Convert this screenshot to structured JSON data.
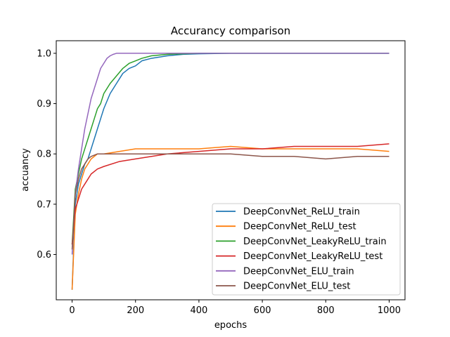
{
  "chart_data": {
    "type": "line",
    "title": "Accurancy comparison",
    "xlabel": "epochs",
    "ylabel": "accuancy",
    "xlim": [
      -50,
      1050
    ],
    "ylim": [
      0.51,
      1.025
    ],
    "xticks": [
      0,
      200,
      400,
      600,
      800,
      1000
    ],
    "yticks": [
      0.6,
      0.7,
      0.8,
      0.9,
      1.0
    ],
    "xtick_labels": [
      "0",
      "200",
      "400",
      "600",
      "800",
      "1000"
    ],
    "ytick_labels": [
      "0.6",
      "0.7",
      "0.8",
      "0.9",
      "1.0"
    ],
    "grid": false,
    "legend_position": "lower-right",
    "series": [
      {
        "name": "DeepConvNet_ReLU_train",
        "color": "#1f77b4",
        "x": [
          0,
          10,
          20,
          30,
          40,
          50,
          60,
          70,
          80,
          90,
          100,
          120,
          140,
          160,
          180,
          200,
          220,
          250,
          300,
          350,
          400,
          500,
          600,
          800,
          1000
        ],
        "y": [
          0.53,
          0.7,
          0.74,
          0.76,
          0.78,
          0.79,
          0.81,
          0.83,
          0.85,
          0.87,
          0.89,
          0.92,
          0.94,
          0.96,
          0.97,
          0.975,
          0.985,
          0.99,
          0.995,
          0.998,
          0.999,
          1.0,
          1.0,
          1.0,
          1.0
        ]
      },
      {
        "name": "DeepConvNet_ReLU_test",
        "color": "#ff7f0e",
        "x": [
          0,
          10,
          20,
          30,
          40,
          50,
          60,
          80,
          100,
          150,
          200,
          300,
          400,
          500,
          600,
          700,
          800,
          900,
          1000
        ],
        "y": [
          0.53,
          0.68,
          0.72,
          0.75,
          0.77,
          0.78,
          0.79,
          0.8,
          0.8,
          0.805,
          0.81,
          0.81,
          0.81,
          0.815,
          0.81,
          0.81,
          0.81,
          0.81,
          0.805
        ]
      },
      {
        "name": "DeepConvNet_LeakyReLU_train",
        "color": "#2ca02c",
        "x": [
          0,
          10,
          20,
          30,
          40,
          50,
          60,
          70,
          80,
          90,
          100,
          120,
          140,
          160,
          180,
          200,
          220,
          250,
          300,
          350,
          400,
          500,
          600,
          800,
          1000
        ],
        "y": [
          0.62,
          0.73,
          0.76,
          0.79,
          0.81,
          0.83,
          0.85,
          0.87,
          0.89,
          0.9,
          0.92,
          0.94,
          0.955,
          0.97,
          0.98,
          0.985,
          0.99,
          0.995,
          0.998,
          0.999,
          1.0,
          1.0,
          1.0,
          1.0,
          1.0
        ]
      },
      {
        "name": "DeepConvNet_LeakyReLU_test",
        "color": "#d62728",
        "x": [
          0,
          10,
          20,
          30,
          40,
          50,
          60,
          80,
          100,
          150,
          200,
          300,
          400,
          500,
          600,
          700,
          800,
          900,
          1000
        ],
        "y": [
          0.62,
          0.69,
          0.71,
          0.73,
          0.74,
          0.75,
          0.76,
          0.77,
          0.775,
          0.785,
          0.79,
          0.8,
          0.805,
          0.81,
          0.81,
          0.815,
          0.815,
          0.815,
          0.82
        ]
      },
      {
        "name": "DeepConvNet_ELU_train",
        "color": "#9467bd",
        "x": [
          0,
          10,
          20,
          30,
          40,
          50,
          60,
          70,
          80,
          90,
          100,
          110,
          120,
          130,
          140,
          160,
          180,
          200,
          250,
          300,
          400,
          600,
          800,
          1000
        ],
        "y": [
          0.6,
          0.72,
          0.77,
          0.81,
          0.85,
          0.88,
          0.91,
          0.93,
          0.95,
          0.97,
          0.98,
          0.99,
          0.995,
          0.998,
          1.0,
          1.0,
          1.0,
          1.0,
          1.0,
          1.0,
          1.0,
          1.0,
          1.0,
          1.0
        ]
      },
      {
        "name": "DeepConvNet_ELU_test",
        "color": "#8c564b",
        "x": [
          0,
          10,
          20,
          30,
          40,
          50,
          60,
          80,
          100,
          150,
          200,
          300,
          400,
          500,
          600,
          700,
          800,
          900,
          1000
        ],
        "y": [
          0.61,
          0.72,
          0.75,
          0.77,
          0.78,
          0.79,
          0.795,
          0.8,
          0.8,
          0.8,
          0.8,
          0.8,
          0.8,
          0.8,
          0.795,
          0.795,
          0.79,
          0.795,
          0.795
        ]
      }
    ]
  }
}
